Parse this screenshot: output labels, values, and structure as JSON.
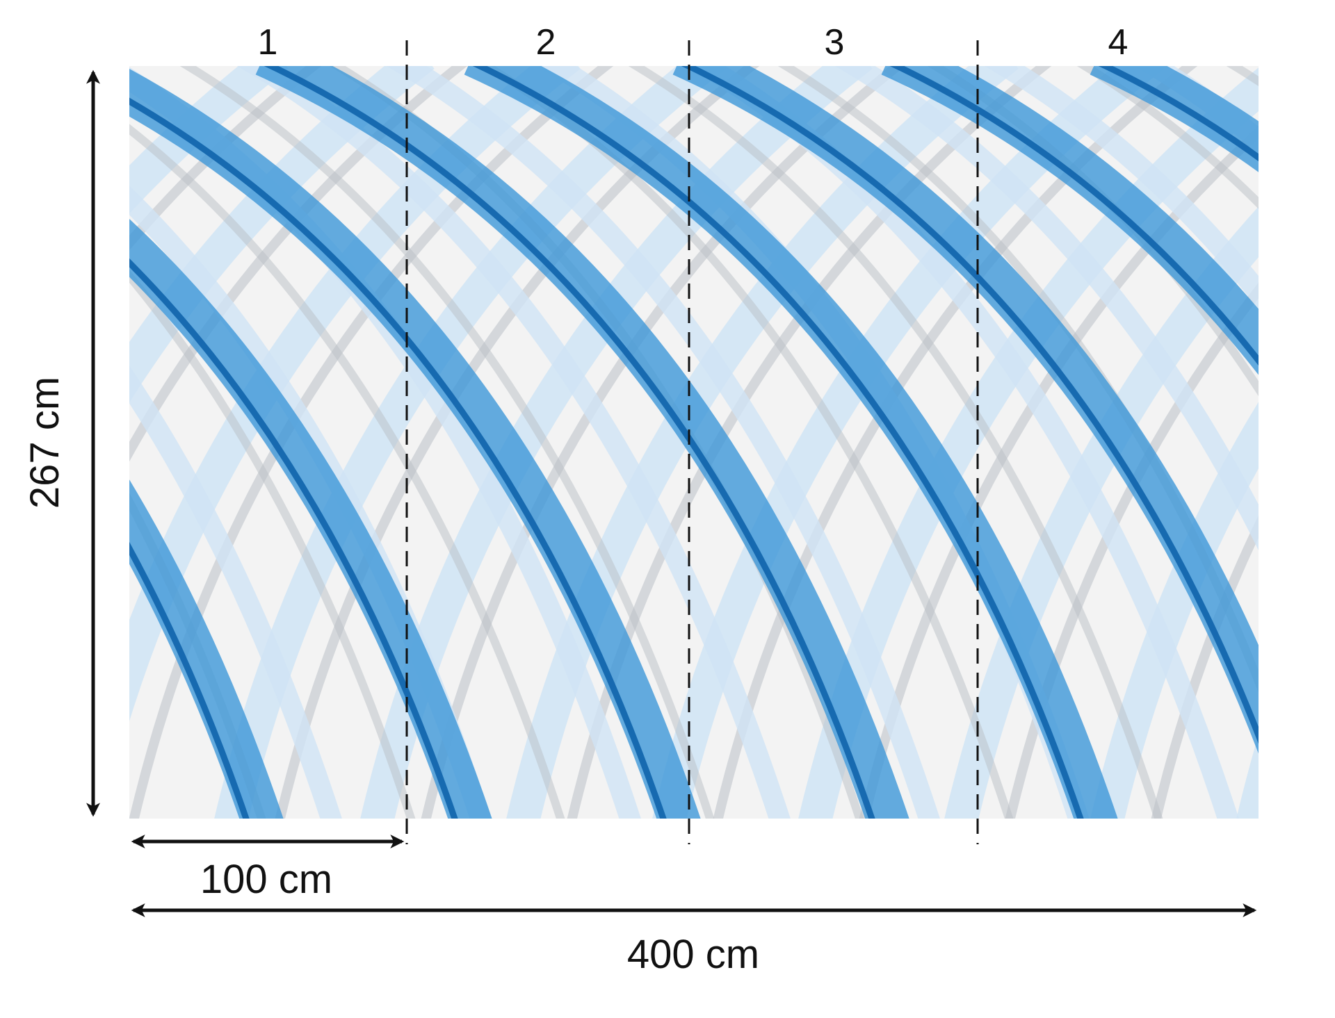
{
  "panels": [
    "1",
    "2",
    "3",
    "4"
  ],
  "dimensions": {
    "height_label": "267 cm",
    "panel_width_label": "100 cm",
    "total_width_label": "400 cm"
  },
  "colors": {
    "blue_dark": "#0b5fa8",
    "blue_mid": "#3d97d8",
    "blue_light": "#cfe4f5",
    "gray_light": "#e6e8eb",
    "gray_mid": "#b9bfc6",
    "background": "#f4f4f4",
    "line": "#111111"
  }
}
